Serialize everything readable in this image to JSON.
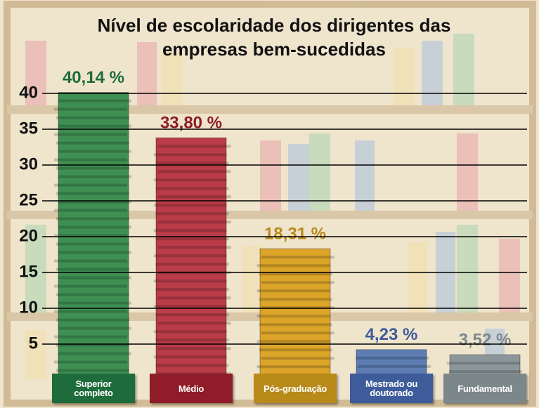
{
  "chart_data": {
    "type": "bar",
    "title_lines": [
      "Nível de escolaridade  dos dirigentes das",
      "empresas bem-sucedidas"
    ],
    "categories": [
      "Superior completo",
      "Médio",
      "Pós-graduação",
      "Mestrado ou doutorado",
      "Fundamental"
    ],
    "values": [
      40.14,
      33.8,
      18.31,
      4.23,
      3.52
    ],
    "value_labels": [
      "40,14 %",
      "33,80 %",
      "18,31 %",
      "4,23 %",
      "3,52 %"
    ],
    "colors": [
      "#3f8f52",
      "#b93c48",
      "#dca52a",
      "#5d7db3",
      "#8b979b"
    ],
    "label_colors": [
      "#1e6b3b",
      "#8f1c28",
      "#b88a1a",
      "#3f5c9a",
      "#7c878b"
    ],
    "ylim": [
      0,
      40
    ],
    "yticks": [
      5,
      10,
      15,
      20,
      25,
      30,
      35,
      40
    ],
    "grid": true
  }
}
